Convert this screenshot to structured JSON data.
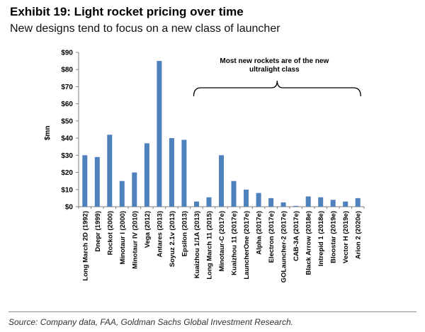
{
  "exhibit": {
    "title": "Exhibit 19: Light rocket pricing over time",
    "subtitle": "New designs tend to focus on a new class of launcher",
    "source": "Source: Company data, FAA, Goldman Sachs Global Investment Research."
  },
  "chart_data": {
    "type": "bar",
    "ylabel": "$mn",
    "xlabel": "",
    "ylim": [
      0,
      90
    ],
    "yticks": [
      0,
      10,
      20,
      30,
      40,
      50,
      60,
      70,
      80,
      90
    ],
    "ytick_labels": [
      "$0",
      "$10",
      "$20",
      "$30",
      "$40",
      "$50",
      "$60",
      "$70",
      "$80",
      "$90"
    ],
    "grid": false,
    "bar_color": "#4f81bd",
    "categories": [
      "Long March 2D (1992)",
      "Dnepr (1999)",
      "Rockot (2000)",
      "Minotaur I (2000)",
      "Minotaur IV (2010)",
      "Vega (2012)",
      "Antares (2013)",
      "Soyuz 2.1v (2013)",
      "Epsilon (2013)",
      "Kuaizhou 1/1A (2013)",
      "Long March 11 (2015)",
      "Minotaur-C (2017e)",
      "Kuaizhou 11 (2017e)",
      "LauncherOne (2017e)",
      "Alpha (2017e)",
      "Electron (2017e)",
      "GOLauncher-2 (2017e)",
      "CAB-3A (2017e)",
      "Black Arrow (2018e)",
      "Intrepid 1 (2018e)",
      "Bloostar (2019e)",
      "Vector H (2019e)",
      "Arion 2 (2020e)"
    ],
    "values": [
      30,
      29,
      42,
      15,
      20,
      37,
      85,
      40,
      39,
      3,
      5.5,
      30,
      15,
      10,
      8,
      5,
      2.5,
      0.5,
      6,
      5.5,
      4,
      3,
      5
    ],
    "annotation": {
      "text": [
        "Most new rockets are of the new",
        "ultralight class"
      ],
      "span_from": "Kuaizhou 1/1A (2013)",
      "span_to": "Arion 2 (2020e)"
    }
  }
}
